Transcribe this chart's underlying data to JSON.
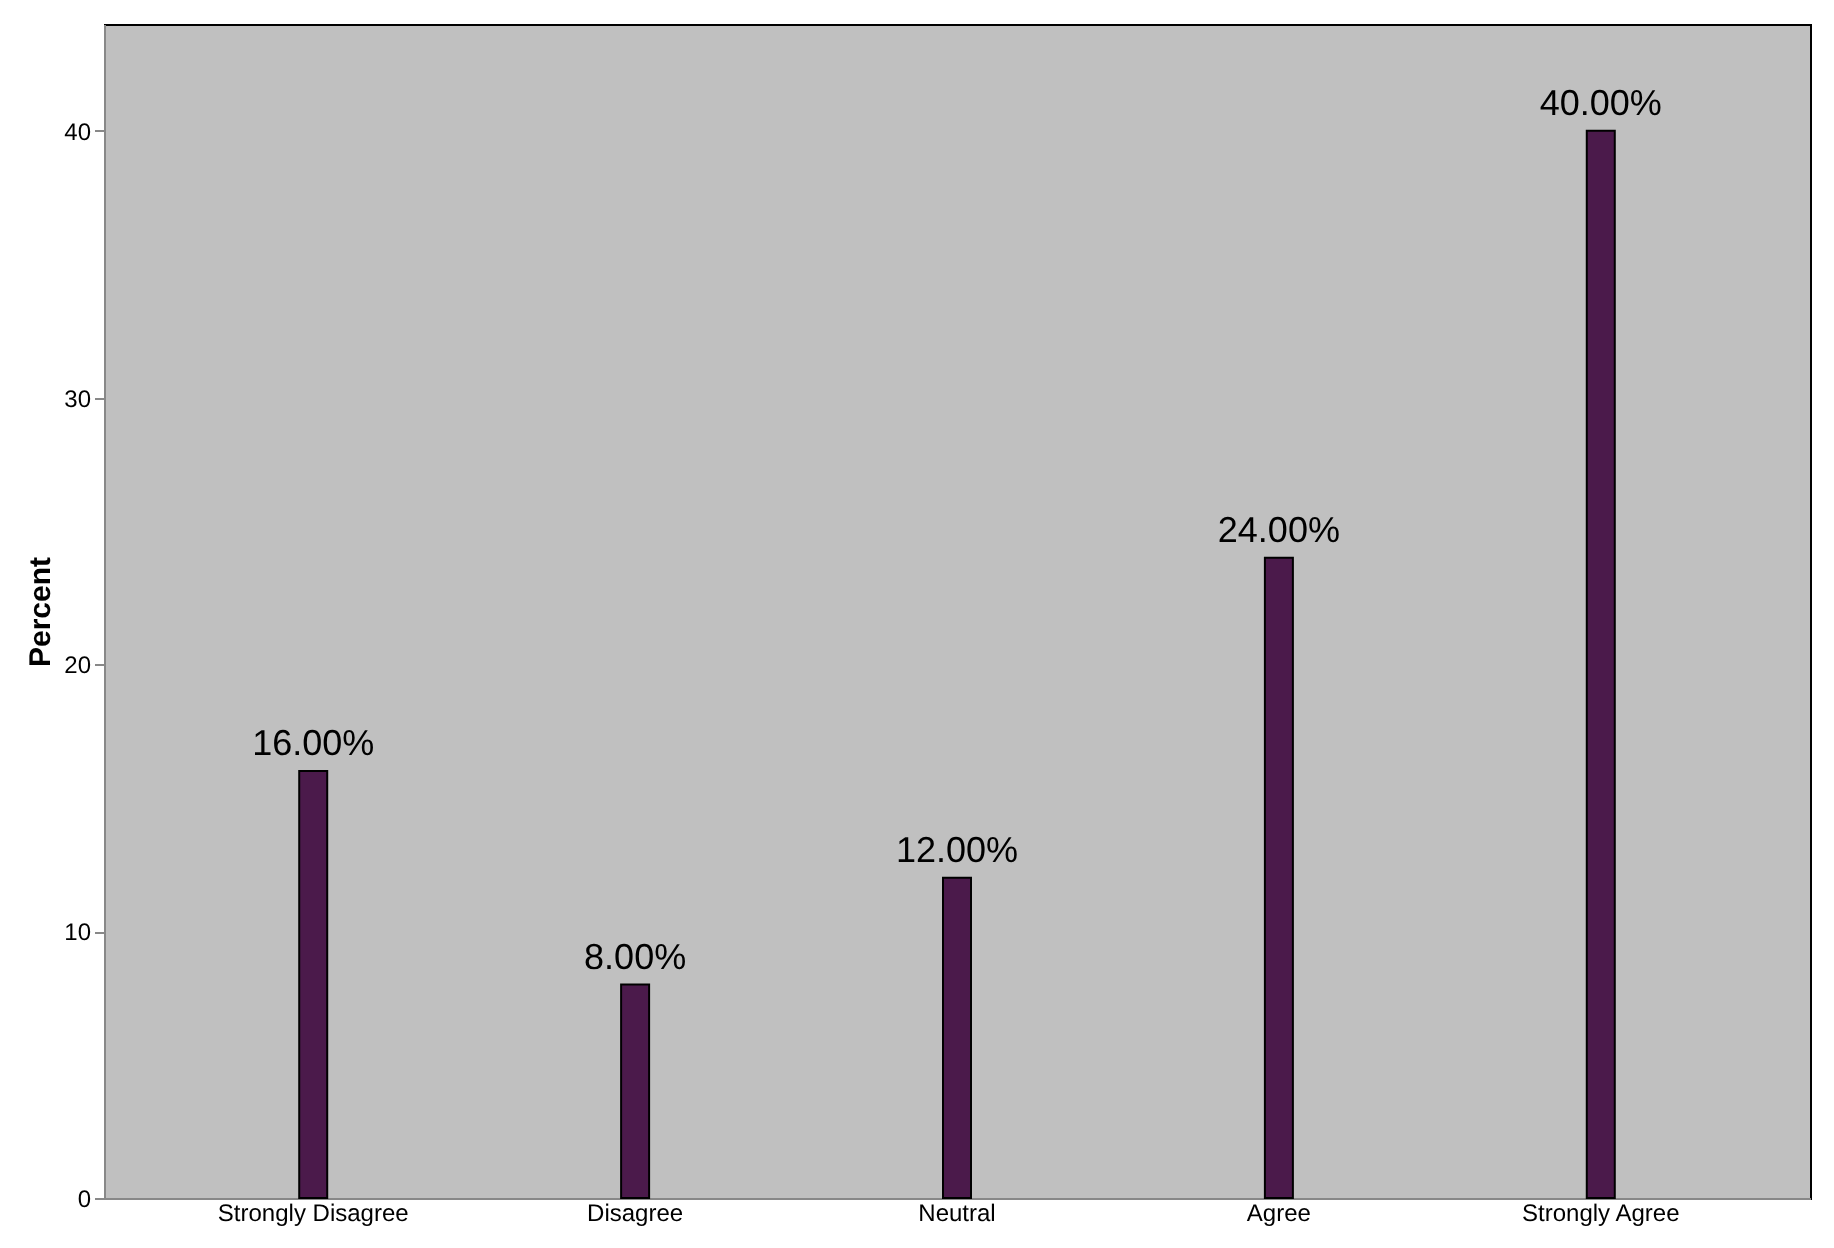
{
  "chart_data": {
    "type": "bar",
    "ylabel": "Percent",
    "categories": [
      "Strongly Disagree",
      "Disagree",
      "Neutral",
      "Agree",
      "Strongly Agree"
    ],
    "values": [
      16,
      8,
      12,
      24,
      40
    ],
    "value_labels": [
      "16.00%",
      "8.00%",
      "12.00%",
      "24.00%",
      "40.00%"
    ],
    "color": "#4b1a4b",
    "ylim": [
      0,
      44
    ],
    "yticks": [
      0,
      10,
      20,
      30,
      40
    ],
    "grid": false
  }
}
